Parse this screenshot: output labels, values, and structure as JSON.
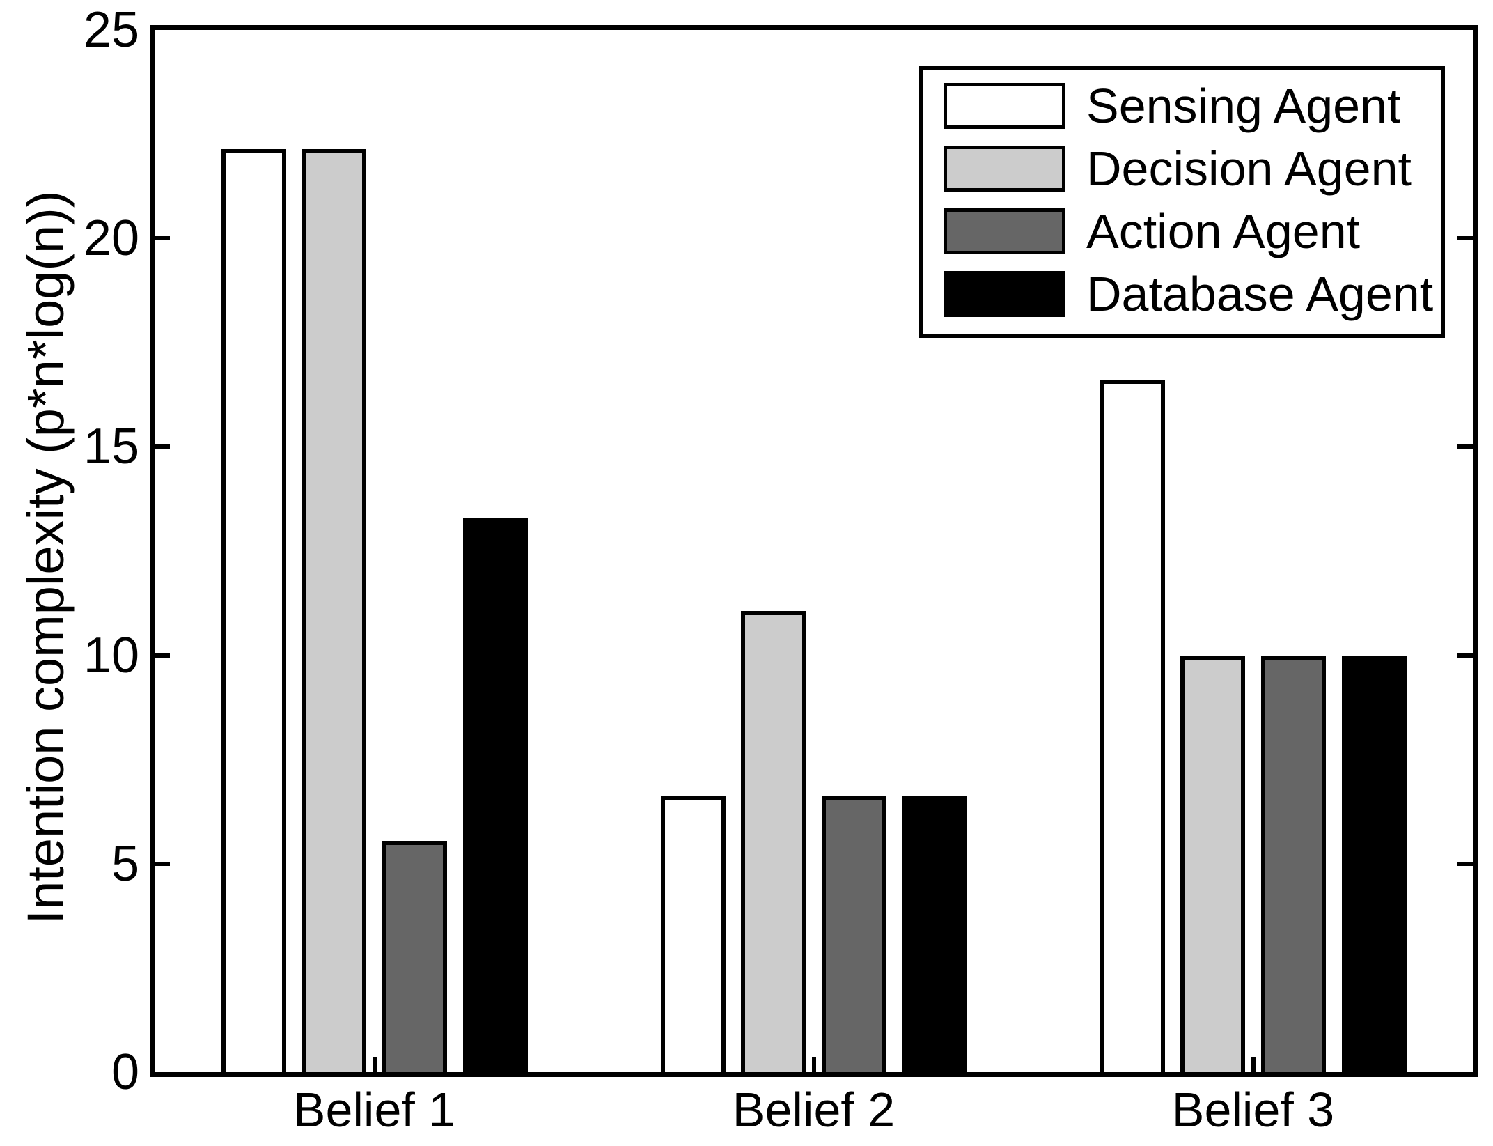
{
  "chart_data": {
    "type": "bar",
    "title": "",
    "categories": [
      "Belief 1",
      "Belief 2",
      "Belief 3"
    ],
    "series": [
      {
        "name": "Sensing Agent",
        "color": "#ffffff",
        "values": [
          22.15,
          6.64,
          16.61
        ]
      },
      {
        "name": "Decision Agent",
        "color": "#cccccc",
        "values": [
          22.15,
          11.07,
          9.97
        ]
      },
      {
        "name": "Action Agent",
        "color": "#666666",
        "values": [
          5.54,
          6.64,
          9.97
        ]
      },
      {
        "name": "Database Agent",
        "color": "#000000",
        "values": [
          13.29,
          6.64,
          9.97
        ]
      }
    ],
    "xlabel": "",
    "ylabel": "Intention complexity (p*n*log(n))",
    "ylim": [
      0,
      25
    ],
    "yticks": [
      0,
      5,
      10,
      15,
      20,
      25
    ],
    "grid": false,
    "legend_position": "top-right",
    "bar_edge_color": "#000000",
    "axis_color": "#000000",
    "background_color": "#ffffff",
    "tick_direction": "in"
  }
}
